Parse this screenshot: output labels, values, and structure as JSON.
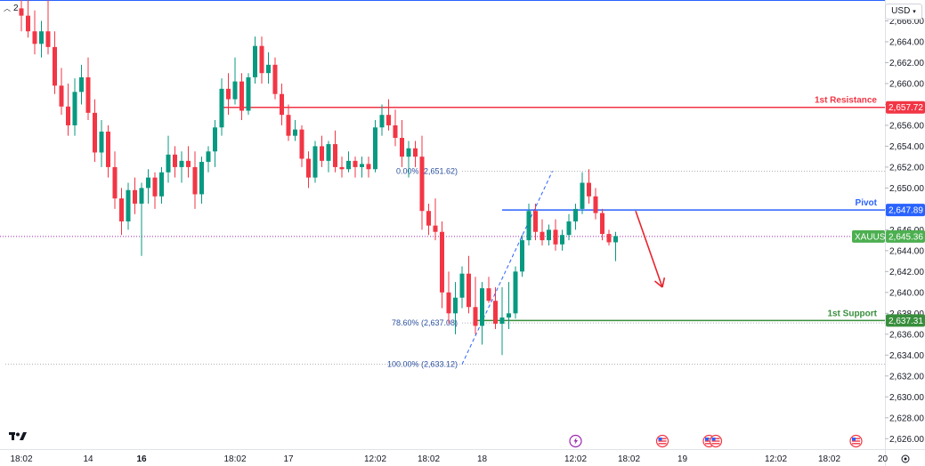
{
  "header": {
    "indicator_count": "2",
    "currency": "USD"
  },
  "colors": {
    "up": "#089981",
    "down": "#f23645",
    "resistance": "#f23645",
    "pivot": "#2962ff",
    "support": "#388e3c",
    "current": "#4caf50",
    "fib": "#2962ff",
    "arrow": "#e8242e"
  },
  "chart_data": {
    "type": "candlestick",
    "symbol": "XAUUSD",
    "currency": "USD",
    "ylim": [
      2625,
      2668
    ],
    "y_ticks": [
      "2,626.00",
      "2,628.00",
      "2,630.00",
      "2,632.00",
      "2,634.00",
      "2,636.00",
      "2,638.00",
      "2,640.00",
      "2,642.00",
      "2,644.00",
      "2,646.00",
      "2,648.00",
      "2,650.00",
      "2,652.00",
      "2,654.00",
      "2,656.00",
      "2,658.00",
      "2,660.00",
      "2,662.00",
      "2,664.00",
      "2,666.00"
    ],
    "x_ticks": [
      {
        "label": "18:02",
        "bold": false,
        "i": 0
      },
      {
        "label": "14",
        "bold": false,
        "i": 10
      },
      {
        "label": "16",
        "bold": true,
        "i": 18
      },
      {
        "label": "18:02",
        "bold": false,
        "i": 32
      },
      {
        "label": "17",
        "bold": false,
        "i": 40
      },
      {
        "label": "12:02",
        "bold": false,
        "i": 53
      },
      {
        "label": "18:02",
        "bold": false,
        "i": 61
      },
      {
        "label": "18",
        "bold": false,
        "i": 69
      },
      {
        "label": "12:02",
        "bold": false,
        "i": 83
      },
      {
        "label": "18:02",
        "bold": false,
        "i": 91
      },
      {
        "label": "19",
        "bold": false,
        "i": 99
      },
      {
        "label": "12:02",
        "bold": false,
        "i": 113
      },
      {
        "label": "18:02",
        "bold": false,
        "i": 121
      },
      {
        "label": "20",
        "bold": false,
        "i": 129
      }
    ],
    "levels": [
      {
        "name": "1st Resistance",
        "value": 2657.72,
        "label": "2,657.72",
        "color": "#f23645",
        "text_color": "#f23645",
        "x_start_i": 30
      },
      {
        "name": "Pivot",
        "value": 2647.89,
        "label": "2,647.89",
        "color": "#2962ff",
        "text_color": "#2962ff",
        "x_start_i": 72
      },
      {
        "name": "1st Support",
        "value": 2637.31,
        "label": "2,637.31",
        "color": "#388e3c",
        "text_color": "#388e3c",
        "x_start_i": 68
      }
    ],
    "current": {
      "name": "XAUUSD",
      "value": 2645.36,
      "label": "2,645.36"
    },
    "fibonacci": [
      {
        "label": "0.00% (2,651.62)",
        "value": 2651.62
      },
      {
        "label": "78.60% (2,637.08)",
        "value": 2637.08
      },
      {
        "label": "100.00% (2,633.12)",
        "value": 2633.12
      }
    ],
    "fib_start": {
      "i": 66,
      "value": 2633.12
    },
    "fib_end": {
      "i": 79,
      "value": 2651.62
    },
    "projection_arrow": {
      "from": {
        "i": 92,
        "value": 2647.8
      },
      "to": {
        "i": 96,
        "value": 2640.5
      }
    },
    "events": [
      "lightning-icon",
      "us-flag-icon",
      "us-flag-icon",
      "us-flag-icon",
      "us-flag-icon"
    ],
    "candles": [
      [
        2667.2,
        2668.0,
        2665.0,
        2666.5
      ],
      [
        2666.5,
        2668.0,
        2664.4,
        2665.0
      ],
      [
        2665.0,
        2667.0,
        2662.8,
        2663.8
      ],
      [
        2663.8,
        2666.0,
        2662.5,
        2665.0
      ],
      [
        2665.0,
        2669.0,
        2662.8,
        2663.5
      ],
      [
        2663.5,
        2665.0,
        2659.0,
        2659.8
      ],
      [
        2659.8,
        2661.5,
        2657.0,
        2657.8
      ],
      [
        2657.8,
        2660.0,
        2655.0,
        2656.0
      ],
      [
        2656.0,
        2660.5,
        2655.0,
        2659.2
      ],
      [
        2659.2,
        2661.8,
        2658.0,
        2660.6
      ],
      [
        2660.6,
        2662.5,
        2656.5,
        2657.2
      ],
      [
        2657.2,
        2658.5,
        2652.5,
        2653.4
      ],
      [
        2653.4,
        2656.5,
        2652.0,
        2655.4
      ],
      [
        2655.4,
        2656.0,
        2651.0,
        2652.0
      ],
      [
        2652.0,
        2653.5,
        2648.0,
        2649.0
      ],
      [
        2649.0,
        2650.0,
        2645.5,
        2646.8
      ],
      [
        2646.8,
        2650.5,
        2646.0,
        2649.8
      ],
      [
        2649.8,
        2651.0,
        2647.5,
        2648.5
      ],
      [
        2648.5,
        2650.5,
        2643.5,
        2650.0
      ],
      [
        2650.0,
        2651.8,
        2648.5,
        2651.0
      ],
      [
        2651.0,
        2651.5,
        2648.0,
        2649.2
      ],
      [
        2649.2,
        2652.0,
        2648.5,
        2651.5
      ],
      [
        2651.5,
        2655.0,
        2650.5,
        2653.2
      ],
      [
        2653.2,
        2654.0,
        2651.0,
        2652.0
      ],
      [
        2652.0,
        2653.5,
        2650.5,
        2652.6
      ],
      [
        2652.6,
        2654.0,
        2651.0,
        2652.0
      ],
      [
        2652.0,
        2653.5,
        2648.0,
        2649.4
      ],
      [
        2649.4,
        2653.0,
        2648.5,
        2652.5
      ],
      [
        2652.5,
        2654.0,
        2651.5,
        2653.5
      ],
      [
        2653.5,
        2656.5,
        2652.0,
        2655.8
      ],
      [
        2655.8,
        2660.5,
        2655.0,
        2659.5
      ],
      [
        2659.5,
        2661.0,
        2657.0,
        2658.5
      ],
      [
        2658.5,
        2662.5,
        2658.0,
        2660.2
      ],
      [
        2660.2,
        2661.0,
        2656.5,
        2657.4
      ],
      [
        2657.4,
        2661.0,
        2657.0,
        2660.6
      ],
      [
        2660.6,
        2664.5,
        2660.0,
        2663.6
      ],
      [
        2663.6,
        2664.5,
        2660.0,
        2661.0
      ],
      [
        2661.0,
        2663.0,
        2660.0,
        2661.8
      ],
      [
        2661.8,
        2662.5,
        2658.5,
        2659.0
      ],
      [
        2659.0,
        2660.0,
        2656.0,
        2657.0
      ],
      [
        2657.0,
        2658.0,
        2654.5,
        2655.0
      ],
      [
        2655.0,
        2656.5,
        2654.5,
        2655.6
      ],
      [
        2655.6,
        2656.0,
        2652.0,
        2652.8
      ],
      [
        2652.8,
        2653.5,
        2650.0,
        2651.0
      ],
      [
        2651.0,
        2654.5,
        2650.5,
        2654.0
      ],
      [
        2654.0,
        2655.0,
        2652.0,
        2652.6
      ],
      [
        2652.6,
        2654.5,
        2651.5,
        2654.2
      ],
      [
        2654.2,
        2655.5,
        2651.5,
        2652.0
      ],
      [
        2652.0,
        2653.0,
        2651.0,
        2651.8
      ],
      [
        2651.8,
        2653.5,
        2651.5,
        2652.6
      ],
      [
        2652.6,
        2653.0,
        2651.0,
        2652.0
      ],
      [
        2652.0,
        2653.0,
        2651.0,
        2652.3
      ],
      [
        2652.3,
        2653.0,
        2651.0,
        2651.8
      ],
      [
        2651.8,
        2656.5,
        2651.5,
        2655.8
      ],
      [
        2655.8,
        2658.0,
        2655.0,
        2657.0
      ],
      [
        2657.0,
        2658.5,
        2655.5,
        2656.0
      ],
      [
        2656.0,
        2657.5,
        2654.0,
        2654.8
      ],
      [
        2654.8,
        2656.5,
        2652.0,
        2653.0
      ],
      [
        2653.0,
        2654.5,
        2651.0,
        2653.8
      ],
      [
        2653.8,
        2654.5,
        2652.0,
        2653.0
      ],
      [
        2653.0,
        2655.0,
        2646.0,
        2647.8
      ],
      [
        2647.8,
        2648.5,
        2645.5,
        2646.4
      ],
      [
        2646.4,
        2649.0,
        2645.0,
        2645.8
      ],
      [
        2645.8,
        2646.8,
        2638.5,
        2640.0
      ],
      [
        2640.0,
        2642.0,
        2637.0,
        2638.0
      ],
      [
        2638.0,
        2641.0,
        2636.0,
        2639.5
      ],
      [
        2639.5,
        2642.5,
        2638.5,
        2641.8
      ],
      [
        2641.8,
        2643.5,
        2638.0,
        2638.6
      ],
      [
        2638.6,
        2641.5,
        2636.0,
        2636.8
      ],
      [
        2636.8,
        2641.0,
        2635.0,
        2640.4
      ],
      [
        2640.4,
        2641.5,
        2639.0,
        2639.2
      ],
      [
        2639.2,
        2640.5,
        2636.5,
        2637.0
      ],
      [
        2637.0,
        2640.5,
        2634.0,
        2637.6
      ],
      [
        2637.6,
        2641.0,
        2636.5,
        2638.0
      ],
      [
        2638.0,
        2642.5,
        2637.5,
        2642.0
      ],
      [
        2642.0,
        2645.5,
        2641.5,
        2645.0
      ],
      [
        2645.0,
        2648.5,
        2644.5,
        2647.8
      ],
      [
        2647.8,
        2648.5,
        2645.0,
        2645.8
      ],
      [
        2645.8,
        2647.0,
        2644.5,
        2645.0
      ],
      [
        2645.0,
        2646.5,
        2644.5,
        2646.0
      ],
      [
        2646.0,
        2647.0,
        2644.0,
        2644.6
      ],
      [
        2644.6,
        2646.0,
        2644.0,
        2645.5
      ],
      [
        2645.5,
        2647.5,
        2645.0,
        2646.8
      ],
      [
        2646.8,
        2648.5,
        2646.0,
        2648.0
      ],
      [
        2648.0,
        2651.5,
        2647.5,
        2650.5
      ],
      [
        2650.5,
        2651.8,
        2648.5,
        2649.2
      ],
      [
        2649.2,
        2650.0,
        2647.0,
        2647.6
      ],
      [
        2647.6,
        2648.0,
        2645.0,
        2645.6
      ],
      [
        2645.6,
        2646.0,
        2644.5,
        2644.8
      ],
      [
        2644.8,
        2645.8,
        2643.0,
        2645.4
      ]
    ]
  }
}
